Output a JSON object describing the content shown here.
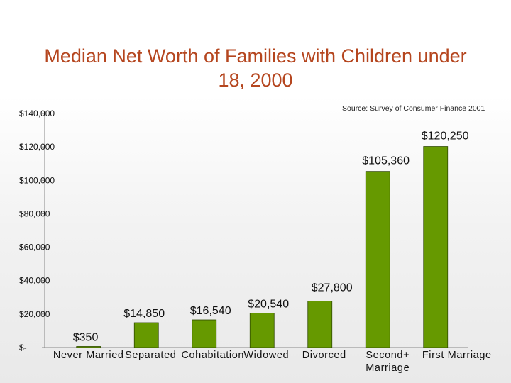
{
  "chart_data": {
    "type": "bar",
    "title_line1": "Median Net Worth of Families with Children under",
    "title_line2": "18, 2000",
    "source": "Source: Survey of Consumer Finance 2001",
    "categories": [
      [
        "Never Married"
      ],
      [
        "Separated"
      ],
      [
        "Cohabitation"
      ],
      [
        "Widowed"
      ],
      [
        "Divorced"
      ],
      [
        "Second+",
        "Marriage"
      ],
      [
        "First Marriage"
      ]
    ],
    "values": [
      350,
      14850,
      16540,
      20540,
      27800,
      105360,
      120250
    ],
    "data_labels": [
      "$350",
      "$14,850",
      "$16,540",
      "$20,540",
      "$27,800",
      "$105,360",
      "$120,250"
    ],
    "ylim": [
      0,
      140000
    ],
    "yticks": [
      0,
      20000,
      40000,
      60000,
      80000,
      100000,
      120000,
      140000
    ],
    "ytick_labels": [
      "$-",
      "$20,000",
      "$40,000",
      "$60,000",
      "$80,000",
      "$100,000",
      "$120,000",
      "$140,000"
    ],
    "grid": false,
    "colors": {
      "bar": "#669900",
      "bar_stroke": "#2f4a00",
      "title": "#b5461f"
    }
  }
}
